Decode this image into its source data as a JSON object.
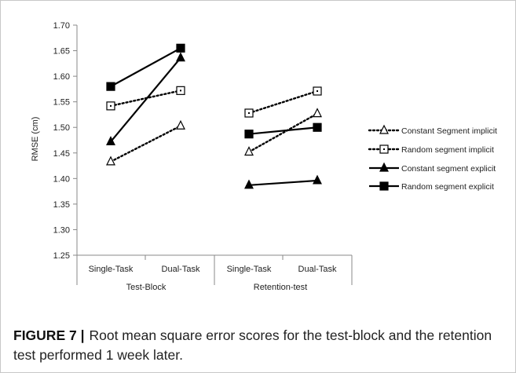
{
  "chart_data": {
    "type": "line",
    "ylabel": "RMSE (cm)",
    "ylim": [
      1.25,
      1.7
    ],
    "yticks": [
      "1.25",
      "1.30",
      "1.35",
      "1.40",
      "1.45",
      "1.50",
      "1.55",
      "1.60",
      "1.65",
      "1.70"
    ],
    "groups": [
      {
        "label": "Test-Block",
        "categories": [
          "Single-Task",
          "Dual-Task"
        ]
      },
      {
        "label": "Retention-test",
        "categories": [
          "Single-Task",
          "Dual-Task"
        ]
      }
    ],
    "categories": [
      "Single-Task",
      "Dual-Task",
      "Single-Task",
      "Dual-Task"
    ],
    "legend_position": "right",
    "series": [
      {
        "name": "Constant Segment implicit",
        "marker": "triangle-open",
        "line": "dotted",
        "values": [
          1.433,
          1.503,
          1.452,
          1.527
        ]
      },
      {
        "name": "Random segment implicit",
        "marker": "square-open",
        "line": "dotted",
        "values": [
          1.542,
          1.572,
          1.528,
          1.571
        ]
      },
      {
        "name": "Constant segment explicit",
        "marker": "triangle-filled",
        "line": "solid",
        "values": [
          1.472,
          1.636,
          1.387,
          1.396
        ]
      },
      {
        "name": "Random segment explicit",
        "marker": "square-filled",
        "line": "solid",
        "values": [
          1.58,
          1.655,
          1.487,
          1.5
        ]
      }
    ]
  },
  "caption": {
    "label": "FIGURE 7 |",
    "text": "Root mean square error scores for the test-block and the retention test performed 1 week later."
  }
}
